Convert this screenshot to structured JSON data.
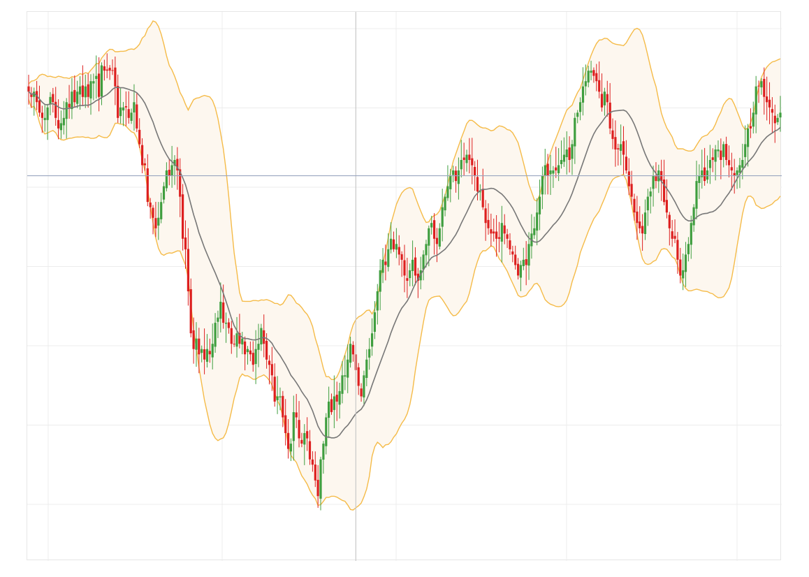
{
  "chart_data": {
    "type": "candlestick",
    "title": "",
    "xlabel": "",
    "ylabel": "",
    "ylim": [
      0,
      100
    ],
    "grid": true,
    "legend": "none",
    "crosshair": {
      "x_bar_index": 121,
      "y_value": 72
    },
    "colors": {
      "up": "#3f9e3f",
      "down": "#dd1f1f",
      "band": "#f5bb48",
      "band_fill": "#fdf7ef",
      "middle": "#777777",
      "crosshair": "#c8c8c8",
      "crosshair_h": "#9aa6c0",
      "grid": "#ececec"
    },
    "series": [
      {
        "name": "",
        "kind": "ohlc",
        "close": [
          88,
          87,
          88,
          86,
          84,
          83,
          83,
          85,
          87,
          86,
          83,
          81,
          82,
          83,
          86,
          85,
          88,
          86,
          88,
          89,
          87,
          89,
          87,
          90,
          90,
          91,
          87,
          93,
          92,
          92,
          92,
          92,
          89,
          83,
          85,
          85,
          85,
          83,
          84,
          86,
          81,
          78,
          74,
          74,
          67,
          66,
          64,
          62,
          64,
          67,
          70,
          73,
          72,
          74,
          75,
          73,
          68,
          60,
          58,
          50,
          42,
          39,
          41,
          38,
          39,
          37,
          39,
          38,
          40,
          44,
          45,
          48,
          44,
          44,
          43,
          40,
          40,
          42,
          40,
          41,
          38,
          39,
          38,
          36,
          39,
          40,
          43,
          40,
          37,
          36,
          34,
          29,
          30,
          30,
          26,
          23,
          20,
          21,
          27,
          26,
          22,
          21,
          23,
          22,
          18,
          17,
          14,
          11,
          18,
          21,
          26,
          29,
          27,
          30,
          29,
          31,
          34,
          34,
          37,
          40,
          38,
          35,
          32,
          30,
          34,
          37,
          39,
          42,
          46,
          50,
          54,
          56,
          55,
          58,
          60,
          58,
          59,
          57,
          56,
          53,
          52,
          54,
          56,
          53,
          52,
          54,
          57,
          59,
          62,
          63,
          60,
          59,
          62,
          66,
          68,
          70,
          72,
          73,
          71,
          73,
          75,
          75,
          76,
          75,
          74,
          72,
          69,
          69,
          66,
          63,
          62,
          61,
          61,
          60,
          60,
          63,
          61,
          60,
          58,
          57,
          55,
          53,
          55,
          56,
          55,
          59,
          61,
          62,
          65,
          68,
          72,
          74,
          72,
          73,
          73,
          73,
          74,
          75,
          76,
          77,
          75,
          78,
          83,
          84,
          86,
          89,
          90,
          92,
          92,
          91,
          90,
          88,
          85,
          88,
          86,
          81,
          79,
          77,
          77,
          78,
          76,
          73,
          70,
          68,
          65,
          63,
          62,
          61,
          65,
          68,
          69,
          72,
          71,
          73,
          71,
          67,
          65,
          62,
          60,
          60,
          56,
          53,
          54,
          57,
          59,
          63,
          66,
          71,
          72,
          73,
          71,
          73,
          75,
          75,
          77,
          77,
          75,
          78,
          75,
          74,
          73,
          72,
          73,
          74,
          75,
          78,
          81,
          81,
          84,
          89,
          89,
          90,
          87,
          86,
          85,
          84,
          82,
          83,
          84
        ]
      }
    ]
  }
}
